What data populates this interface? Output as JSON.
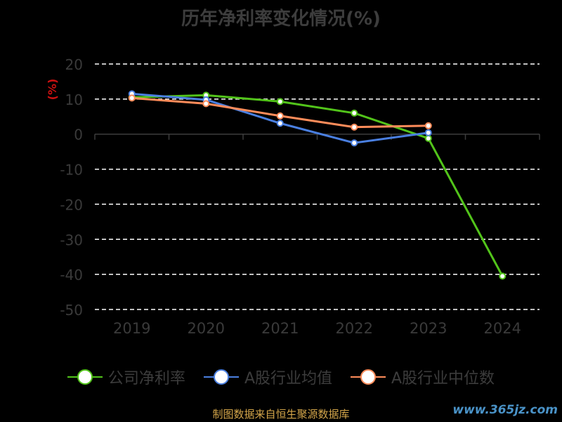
{
  "title": "历年净利率变化情况(%)",
  "source": "制图数据来自恒生聚源数据库",
  "watermark": "www.365jz.com",
  "chart_data": {
    "type": "line",
    "title": "历年净利率变化情况(%)",
    "ylabel": "(%)",
    "xlabel": "",
    "categories": [
      "2019",
      "2020",
      "2021",
      "2022",
      "2023",
      "2024"
    ],
    "ylim": [
      -50,
      20
    ],
    "yticks": [
      20,
      10,
      0,
      -10,
      -20,
      -30,
      -40,
      -50
    ],
    "grid": true,
    "legend_position": "bottom",
    "series": [
      {
        "name": "公司净利率",
        "color": "#52c41a",
        "values": [
          10.5,
          11.1,
          9.3,
          6.0,
          -1.2,
          -40.5
        ]
      },
      {
        "name": "A股行业均值",
        "color": "#4a7fe0",
        "values": [
          11.5,
          9.8,
          3.1,
          -2.5,
          0.4,
          null
        ]
      },
      {
        "name": "A股行业中位数",
        "color": "#ff8c5a",
        "values": [
          10.3,
          8.7,
          5.2,
          2.0,
          2.4,
          null
        ]
      }
    ]
  }
}
